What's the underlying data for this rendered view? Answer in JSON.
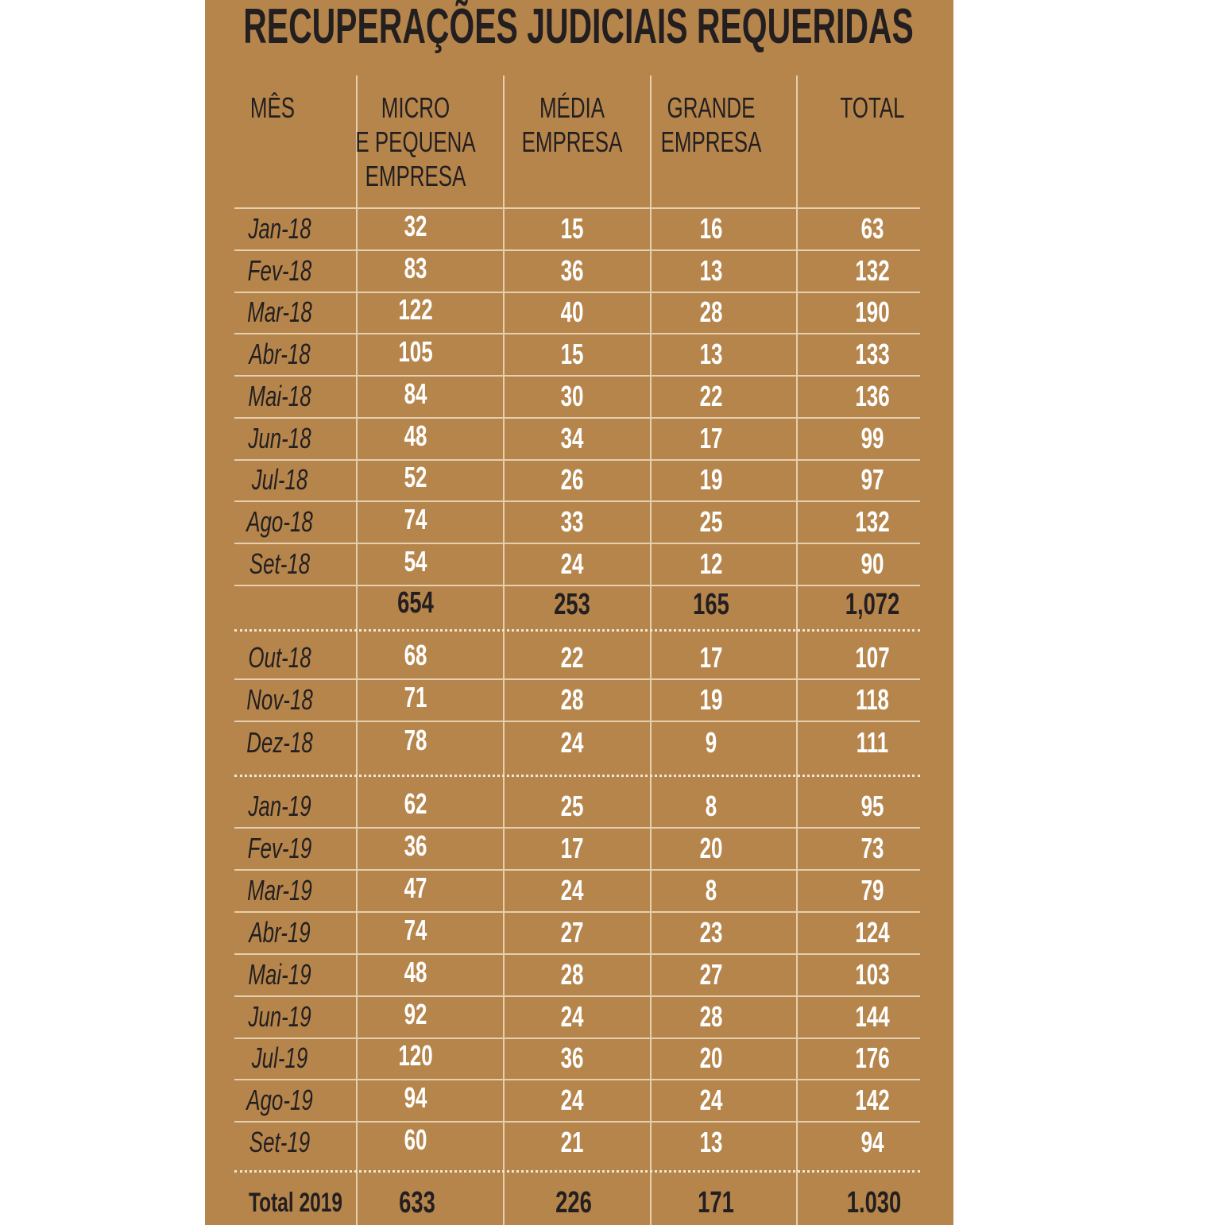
{
  "title": "RECUPERAÇÕES JUDICIAIS REQUERIDAS",
  "table": {
    "headers": [
      [
        "MÊS"
      ],
      [
        "MICRO",
        "E PEQUENA",
        "EMPRESA"
      ],
      [
        "MÉDIA",
        "EMPRESA"
      ],
      [
        "GRANDE",
        "EMPRESA"
      ],
      [
        "TOTAL"
      ]
    ],
    "sections": [
      {
        "rows": [
          [
            "Jan-18",
            "32",
            "15",
            "16",
            "63"
          ],
          [
            "Fev-18",
            "83",
            "36",
            "13",
            "132"
          ],
          [
            "Mar-18",
            "122",
            "40",
            "28",
            "190"
          ],
          [
            "Abr-18",
            "105",
            "15",
            "13",
            "133"
          ],
          [
            "Mai-18",
            "84",
            "30",
            "22",
            "136"
          ],
          [
            "Jun-18",
            "48",
            "34",
            "17",
            "99"
          ],
          [
            "Jul-18",
            "52",
            "26",
            "19",
            "97"
          ],
          [
            "Ago-18",
            "74",
            "33",
            "25",
            "132"
          ],
          [
            "Set-18",
            "54",
            "24",
            "12",
            "90"
          ]
        ],
        "subtotal": [
          "654",
          "253",
          "165",
          "1,072"
        ]
      },
      {
        "rows": [
          [
            "Out-18",
            "68",
            "22",
            "17",
            "107"
          ],
          [
            "Nov-18",
            "71",
            "28",
            "19",
            "118"
          ],
          [
            "Dez-18",
            "78",
            "24",
            "9",
            "111"
          ]
        ]
      },
      {
        "rows": [
          [
            "Jan-19",
            "62",
            "25",
            "8",
            "95"
          ],
          [
            "Fev-19",
            "36",
            "17",
            "20",
            "73"
          ],
          [
            "Mar-19",
            "47",
            "24",
            "8",
            "79"
          ],
          [
            "Abr-19",
            "74",
            "27",
            "23",
            "124"
          ],
          [
            "Mai-19",
            "48",
            "28",
            "27",
            "103"
          ],
          [
            "Jun-19",
            "92",
            "24",
            "28",
            "144"
          ],
          [
            "Jul-19",
            "120",
            "36",
            "20",
            "176"
          ],
          [
            "Ago-19",
            "94",
            "24",
            "24",
            "142"
          ],
          [
            "Set-19",
            "60",
            "21",
            "13",
            "94"
          ]
        ]
      }
    ],
    "total": [
      "Total 2019",
      "633",
      "226",
      "171",
      "1.030"
    ]
  }
}
